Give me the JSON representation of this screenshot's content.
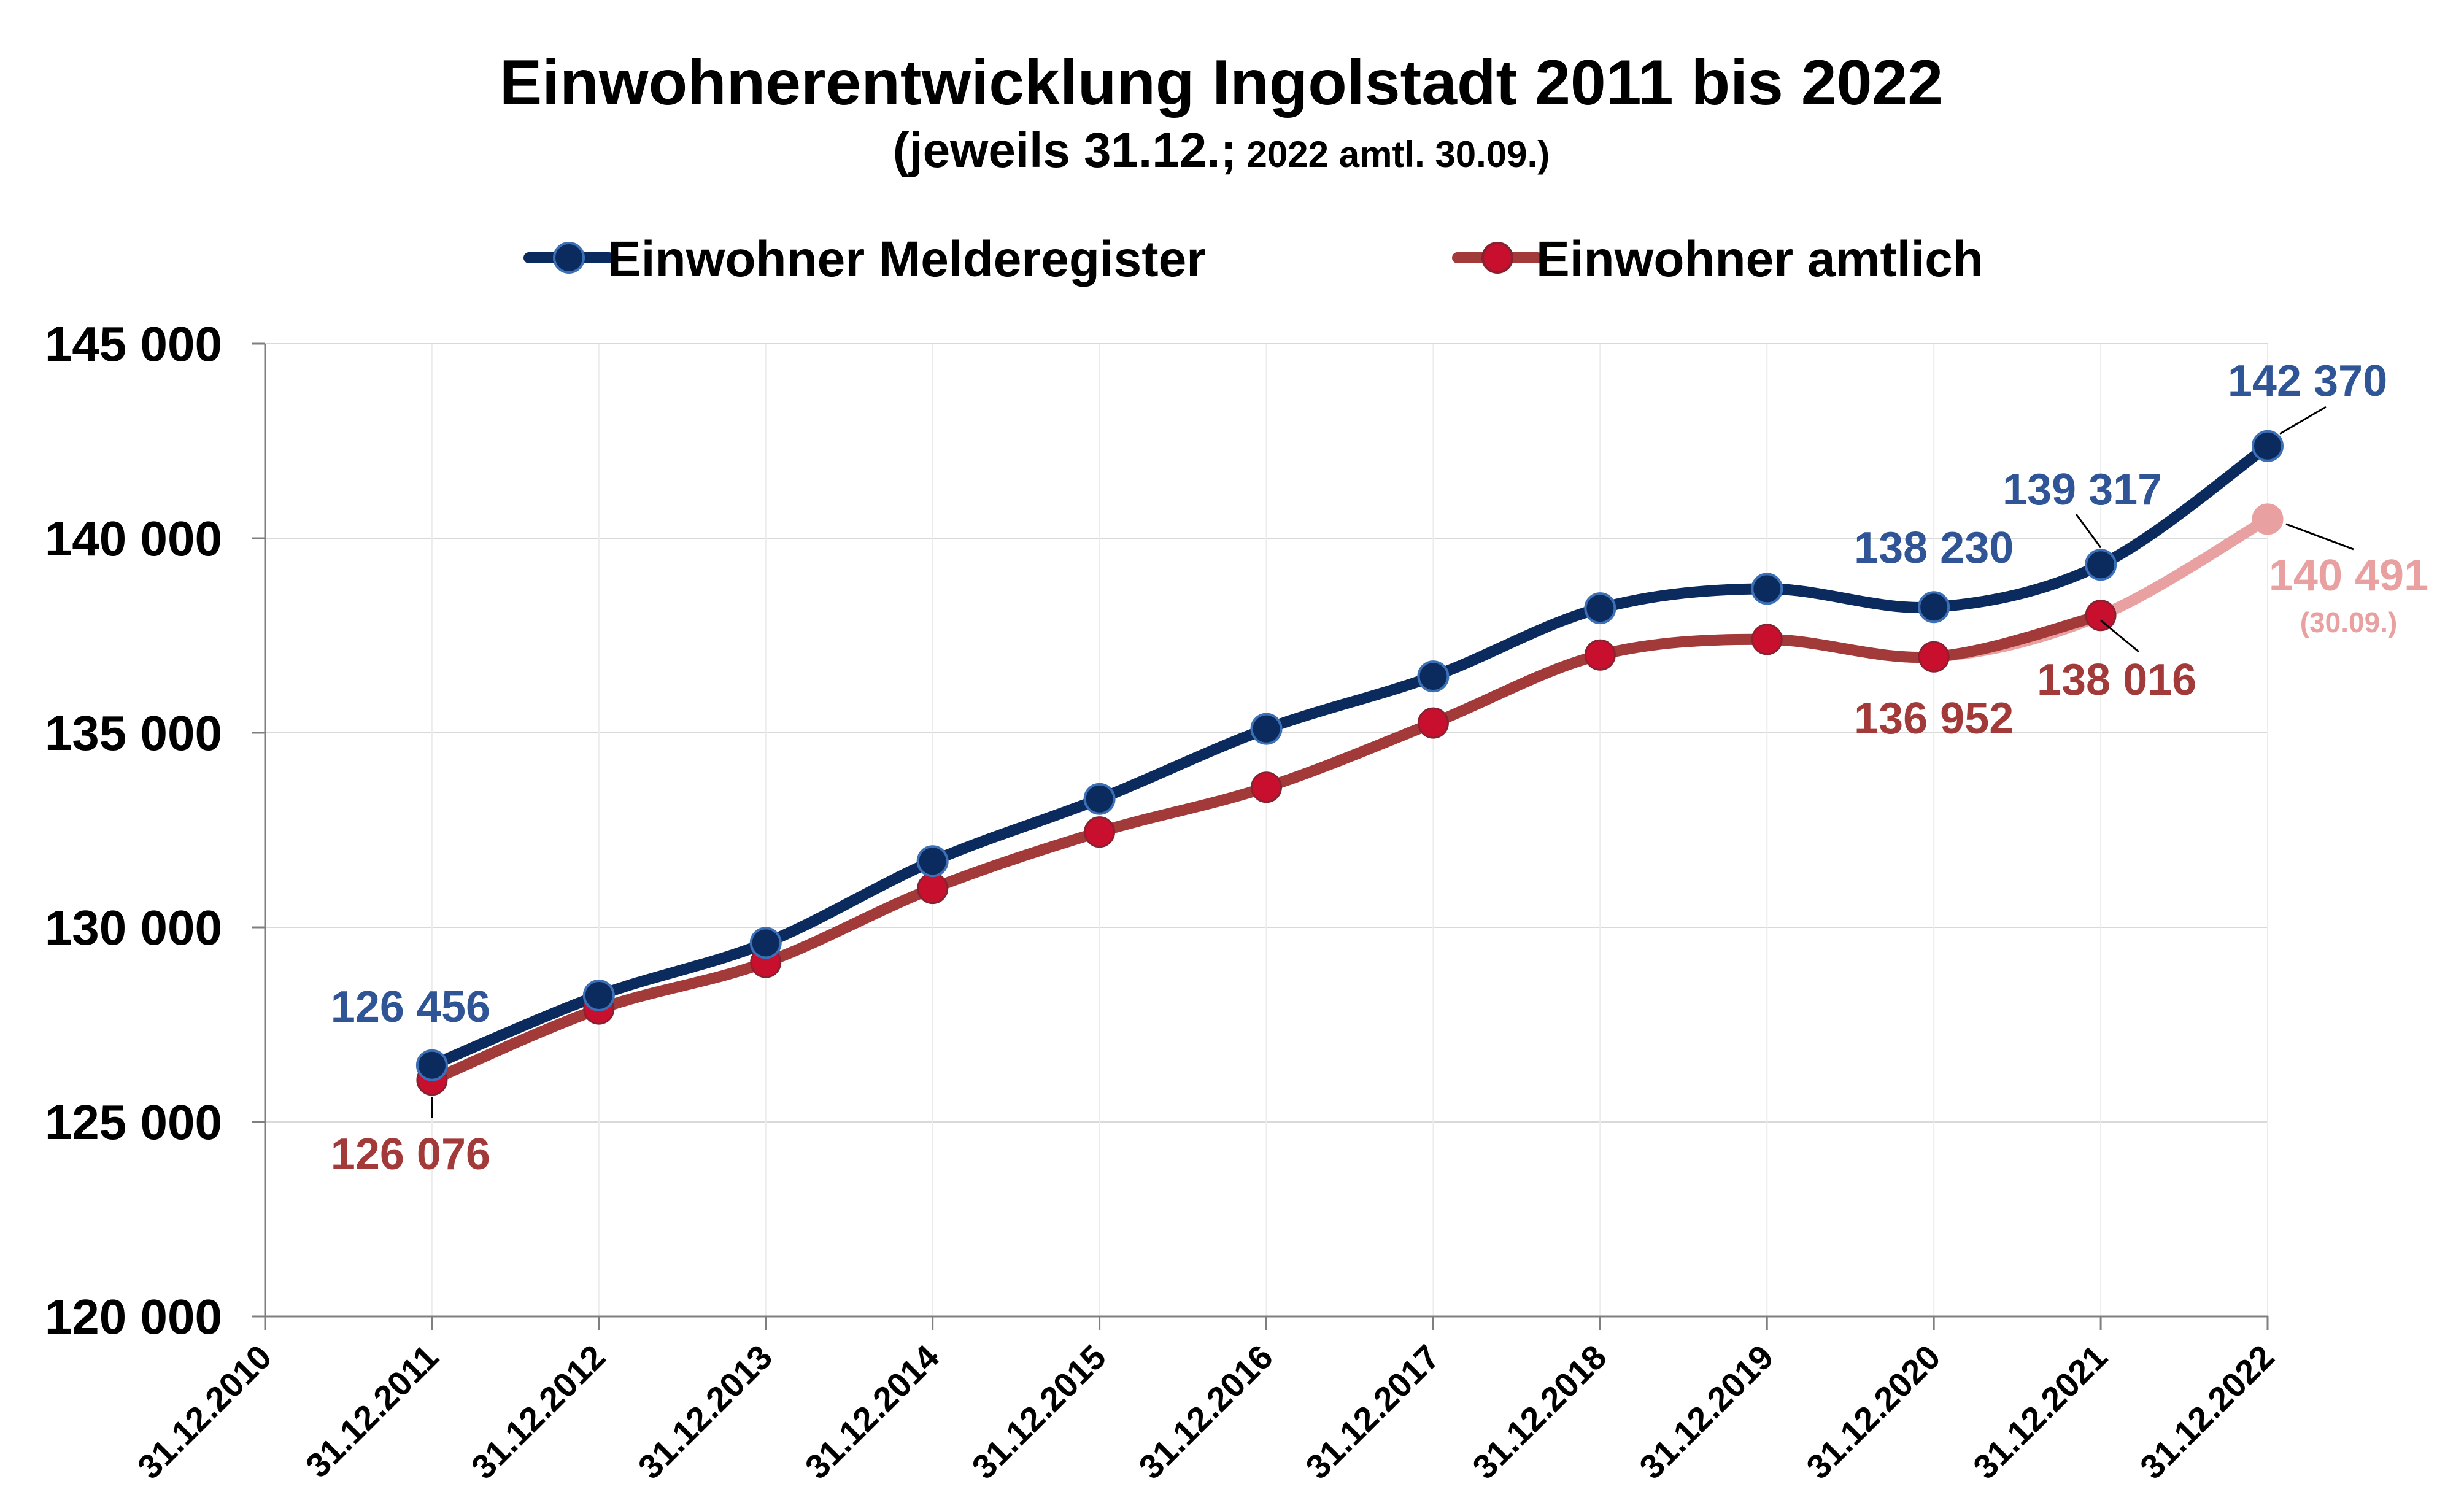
{
  "chart_data": {
    "type": "line",
    "title": "Einwohnerentwicklung Ingolstadt 2011 bis 2022",
    "subtitle_main": "(jeweils 31.12.;",
    "subtitle_small": "2022 amtl. 30.09.)",
    "categories": [
      "31.12.2010",
      "31.12.2011",
      "31.12.2012",
      "31.12.2013",
      "31.12.2014",
      "31.12.2015",
      "31.12.2016",
      "31.12.2017",
      "31.12.2018",
      "31.12.2019",
      "31.12.2020",
      "31.12.2021",
      "31.12.2022"
    ],
    "y_ticks": [
      "145 000",
      "140 000",
      "135 000",
      "130 000",
      "125 000",
      "120 000"
    ],
    "ylim": [
      120000,
      145000
    ],
    "grid": true,
    "legend_position": "top",
    "series": [
      {
        "name": "Einwohner Melderegister",
        "color": "#0b2a5e",
        "label_color": "#2f5597",
        "values": [
          null,
          126456,
          128250,
          129600,
          131700,
          133300,
          135100,
          136450,
          138200,
          138700,
          138230,
          139317,
          142370
        ]
      },
      {
        "name": "Einwohner amtlich",
        "color": "#a33a3a",
        "marker_color": "#c8102e",
        "highlight_color": "#e8a0a0",
        "values": [
          null,
          126076,
          127900,
          129100,
          131000,
          132450,
          133600,
          135250,
          137000,
          137400,
          136952,
          138016,
          140491
        ]
      }
    ],
    "data_labels": {
      "meld_2011": "126 456",
      "meld_2020": "138 230",
      "meld_2021": "139 317",
      "meld_2022": "142 370",
      "amt_2011": "126 076",
      "amt_2020": "136 952",
      "amt_2021": "138 016",
      "amt_2022": "140 491",
      "amt_2022_note": "(30.09.)"
    }
  }
}
